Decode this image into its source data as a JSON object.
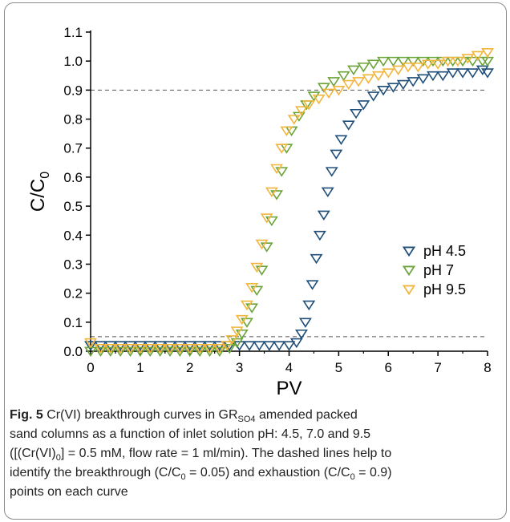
{
  "chart_data": {
    "type": "scatter",
    "xlabel": "PV",
    "ylabel_main": "C/C",
    "ylabel_sub": "0",
    "xlim": [
      0,
      8
    ],
    "ylim": [
      0,
      1.1
    ],
    "x_ticks": [
      "0",
      "1",
      "2",
      "3",
      "4",
      "5",
      "6",
      "7",
      "8"
    ],
    "y_ticks": [
      "0.0",
      "0.1",
      "0.2",
      "0.3",
      "0.4",
      "0.5",
      "0.6",
      "0.7",
      "0.8",
      "0.9",
      "1.0",
      "1.1"
    ],
    "reference_lines": [
      0.05,
      0.9
    ],
    "marker": "triangle-down-open",
    "legend_position": "right",
    "series": [
      {
        "name": "pH 4.5",
        "color": "#1f4e79",
        "points": [
          [
            0.0,
            0.02
          ],
          [
            0.2,
            0.02
          ],
          [
            0.4,
            0.02
          ],
          [
            0.6,
            0.02
          ],
          [
            0.8,
            0.02
          ],
          [
            1.0,
            0.02
          ],
          [
            1.2,
            0.02
          ],
          [
            1.4,
            0.02
          ],
          [
            1.6,
            0.02
          ],
          [
            1.8,
            0.02
          ],
          [
            2.0,
            0.02
          ],
          [
            2.2,
            0.02
          ],
          [
            2.4,
            0.02
          ],
          [
            2.6,
            0.02
          ],
          [
            2.8,
            0.02
          ],
          [
            3.0,
            0.02
          ],
          [
            3.2,
            0.02
          ],
          [
            3.4,
            0.02
          ],
          [
            3.6,
            0.02
          ],
          [
            3.8,
            0.02
          ],
          [
            4.0,
            0.02
          ],
          [
            4.15,
            0.03
          ],
          [
            4.25,
            0.06
          ],
          [
            4.33,
            0.1
          ],
          [
            4.4,
            0.16
          ],
          [
            4.47,
            0.23
          ],
          [
            4.55,
            0.32
          ],
          [
            4.62,
            0.4
          ],
          [
            4.7,
            0.47
          ],
          [
            4.78,
            0.55
          ],
          [
            4.86,
            0.62
          ],
          [
            4.95,
            0.68
          ],
          [
            5.05,
            0.73
          ],
          [
            5.2,
            0.78
          ],
          [
            5.35,
            0.82
          ],
          [
            5.5,
            0.85
          ],
          [
            5.7,
            0.88
          ],
          [
            5.9,
            0.9
          ],
          [
            6.1,
            0.91
          ],
          [
            6.3,
            0.92
          ],
          [
            6.5,
            0.93
          ],
          [
            6.7,
            0.94
          ],
          [
            6.9,
            0.95
          ],
          [
            7.1,
            0.95
          ],
          [
            7.3,
            0.96
          ],
          [
            7.5,
            0.96
          ],
          [
            7.7,
            0.96
          ],
          [
            7.9,
            0.97
          ],
          [
            8.0,
            0.96
          ]
        ]
      },
      {
        "name": "pH 7",
        "color": "#6aa338",
        "points": [
          [
            0.0,
            0.0
          ],
          [
            0.2,
            0.0
          ],
          [
            0.4,
            0.0
          ],
          [
            0.6,
            0.0
          ],
          [
            0.8,
            0.0
          ],
          [
            1.0,
            0.0
          ],
          [
            1.2,
            0.0
          ],
          [
            1.4,
            0.0
          ],
          [
            1.6,
            0.0
          ],
          [
            1.8,
            0.0
          ],
          [
            2.0,
            0.0
          ],
          [
            2.2,
            0.0
          ],
          [
            2.4,
            0.0
          ],
          [
            2.6,
            0.0
          ],
          [
            2.8,
            0.01
          ],
          [
            2.95,
            0.03
          ],
          [
            3.05,
            0.06
          ],
          [
            3.15,
            0.1
          ],
          [
            3.25,
            0.15
          ],
          [
            3.35,
            0.21
          ],
          [
            3.45,
            0.28
          ],
          [
            3.55,
            0.36
          ],
          [
            3.65,
            0.45
          ],
          [
            3.75,
            0.54
          ],
          [
            3.85,
            0.62
          ],
          [
            3.95,
            0.7
          ],
          [
            4.05,
            0.76
          ],
          [
            4.2,
            0.81
          ],
          [
            4.35,
            0.85
          ],
          [
            4.5,
            0.88
          ],
          [
            4.7,
            0.91
          ],
          [
            4.9,
            0.93
          ],
          [
            5.1,
            0.95
          ],
          [
            5.3,
            0.97
          ],
          [
            5.5,
            0.98
          ],
          [
            5.7,
            0.99
          ],
          [
            5.9,
            1.0
          ],
          [
            6.1,
            1.0
          ],
          [
            6.3,
            1.0
          ],
          [
            6.5,
            1.0
          ],
          [
            6.7,
            1.0
          ],
          [
            6.9,
            1.0
          ],
          [
            7.1,
            1.0
          ],
          [
            7.3,
            1.0
          ],
          [
            7.5,
            1.0
          ],
          [
            7.7,
            1.0
          ],
          [
            7.9,
            1.0
          ],
          [
            8.0,
            1.0
          ]
        ]
      },
      {
        "name": "pH 9.5",
        "color": "#f2b53b",
        "points": [
          [
            0.0,
            0.03
          ],
          [
            0.2,
            0.01
          ],
          [
            0.4,
            0.01
          ],
          [
            0.6,
            0.01
          ],
          [
            0.8,
            0.01
          ],
          [
            1.0,
            0.01
          ],
          [
            1.2,
            0.01
          ],
          [
            1.4,
            0.01
          ],
          [
            1.6,
            0.01
          ],
          [
            1.8,
            0.01
          ],
          [
            2.0,
            0.01
          ],
          [
            2.2,
            0.01
          ],
          [
            2.4,
            0.01
          ],
          [
            2.6,
            0.01
          ],
          [
            2.75,
            0.02
          ],
          [
            2.85,
            0.04
          ],
          [
            2.95,
            0.07
          ],
          [
            3.05,
            0.11
          ],
          [
            3.15,
            0.16
          ],
          [
            3.25,
            0.22
          ],
          [
            3.35,
            0.29
          ],
          [
            3.45,
            0.37
          ],
          [
            3.55,
            0.46
          ],
          [
            3.65,
            0.55
          ],
          [
            3.75,
            0.63
          ],
          [
            3.85,
            0.7
          ],
          [
            3.95,
            0.76
          ],
          [
            4.1,
            0.8
          ],
          [
            4.25,
            0.83
          ],
          [
            4.4,
            0.85
          ],
          [
            4.6,
            0.87
          ],
          [
            4.8,
            0.89
          ],
          [
            5.0,
            0.9
          ],
          [
            5.2,
            0.92
          ],
          [
            5.4,
            0.93
          ],
          [
            5.6,
            0.94
          ],
          [
            5.8,
            0.95
          ],
          [
            6.0,
            0.96
          ],
          [
            6.2,
            0.97
          ],
          [
            6.4,
            0.98
          ],
          [
            6.6,
            0.98
          ],
          [
            6.8,
            0.99
          ],
          [
            7.0,
            0.99
          ],
          [
            7.2,
            1.0
          ],
          [
            7.4,
            1.0
          ],
          [
            7.6,
            1.01
          ],
          [
            7.8,
            1.02
          ],
          [
            8.0,
            1.03
          ]
        ]
      }
    ]
  },
  "caption": {
    "fig_label": "Fig. 5",
    "line1_a": " Cr(VI) breakthrough curves in GR",
    "line1_sub": "SO4",
    "line1_b": " amended packed",
    "line2": "sand columns as a function of inlet solution pH: 4.5, 7.0 and 9.5",
    "line3_a": "([(Cr(VI)",
    "line3_sub": "0",
    "line3_b": "] = 0.5 mM, flow rate = 1 ml/min). The dashed lines help to",
    "line4_a": "identify the breakthrough (C/C",
    "line4_sub1": "0",
    "line4_b": " = 0.05) and exhaustion (C/C",
    "line4_sub2": "0",
    "line4_c": " = 0.9)",
    "line5": "points on each curve"
  }
}
